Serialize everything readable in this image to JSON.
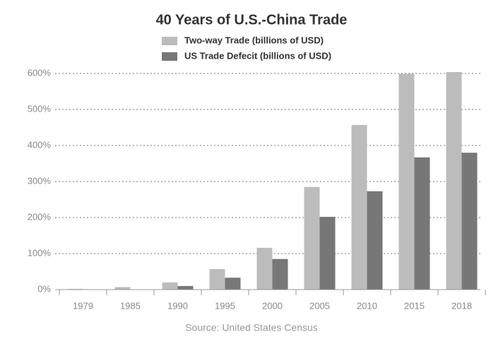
{
  "chart_data": {
    "type": "bar",
    "title": "40 Years of U.S.-China Trade",
    "categories": [
      "1979",
      "1985",
      "1990",
      "1995",
      "2000",
      "2005",
      "2010",
      "2015",
      "2018"
    ],
    "series": [
      {
        "name": "Two-way Trade (billions of USD)",
        "color": "#bcbcbc",
        "values": [
          2,
          7,
          20,
          57,
          116,
          285,
          457,
          599,
          604
        ]
      },
      {
        "name": "US Trade Defecit (billions of USD)",
        "color": "#777777",
        "values": [
          0,
          0,
          10,
          33,
          85,
          202,
          273,
          367,
          380
        ]
      }
    ],
    "ylim": [
      0,
      610
    ],
    "yticks": [
      {
        "value": 0,
        "label": "0%"
      },
      {
        "value": 100,
        "label": "100%"
      },
      {
        "value": 200,
        "label": "200%"
      },
      {
        "value": 300,
        "label": "300%"
      },
      {
        "value": 400,
        "label": "400%"
      },
      {
        "value": 500,
        "label": "500%"
      },
      {
        "value": 600,
        "label": "600%"
      }
    ],
    "grid": true,
    "source": "Source: United States Census"
  }
}
